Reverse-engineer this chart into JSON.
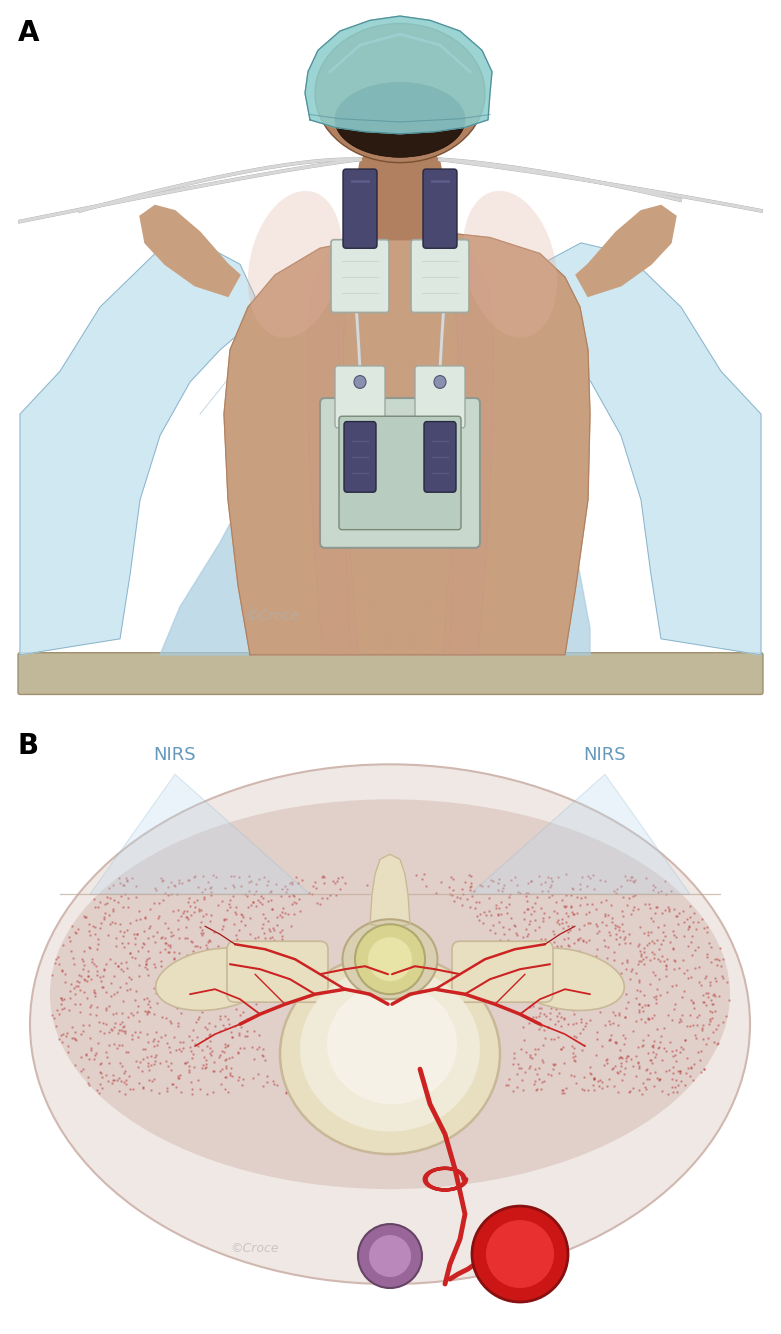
{
  "panel_A_label": "A",
  "panel_B_label": "B",
  "nirs_left_label": "NIRS",
  "nirs_right_label": "NIRS",
  "label_fontsize": 20,
  "nirs_fontsize": 13,
  "bg_color": "#ffffff",
  "skin_light": "#c8a080",
  "skin_mid": "#b08060",
  "skin_dark": "#906040",
  "skin_shadow": "#7a5035",
  "muscle_pink": "#c89080",
  "muscle_highlight": "#e0b0a0",
  "hair_color": "#2a1a10",
  "cap_color": "#8ecece",
  "cap_mid": "#70b0b8",
  "cap_dark": "#50909a",
  "device_white": "#dce8e0",
  "device_connector": "#484870",
  "device_grey": "#c0c0c8",
  "cable_color": "#d8d8d8",
  "cable_dark": "#b0b0b0",
  "drape_light": "#c8e4f0",
  "drape_mid": "#a8cce0",
  "drape_dark": "#88b0c8",
  "drape_shadow": "#90b8cc",
  "table_color": "#c0b898",
  "table_shadow": "#a09070",
  "panel_b_outer": "#f0e8e4",
  "panel_b_tissue": "#e8d8d0",
  "panel_b_muscle": "#d8c0b8",
  "panel_b_red_dots": "#b84040",
  "spine_outer": "#e8dfc0",
  "spine_inner": "#f0ead8",
  "spine_highlight": "#f8f5ec",
  "canal_color": "#c8c0a0",
  "cord_outer": "#d8d490",
  "cord_inner": "#e8e4a8",
  "vessel_bright": "#cc2222",
  "vessel_mid": "#aa1818",
  "vessel_dark": "#881010",
  "nirs_cone": "#b8d8ee",
  "nirs_cone_alpha": 0.3,
  "nirs_text_color": "#6699bb",
  "watermark": "#b0b0b0",
  "aorta_red": "#cc1515",
  "aorta_bright": "#e83030",
  "vein_color": "#996699",
  "vein_light": "#bb88bb"
}
